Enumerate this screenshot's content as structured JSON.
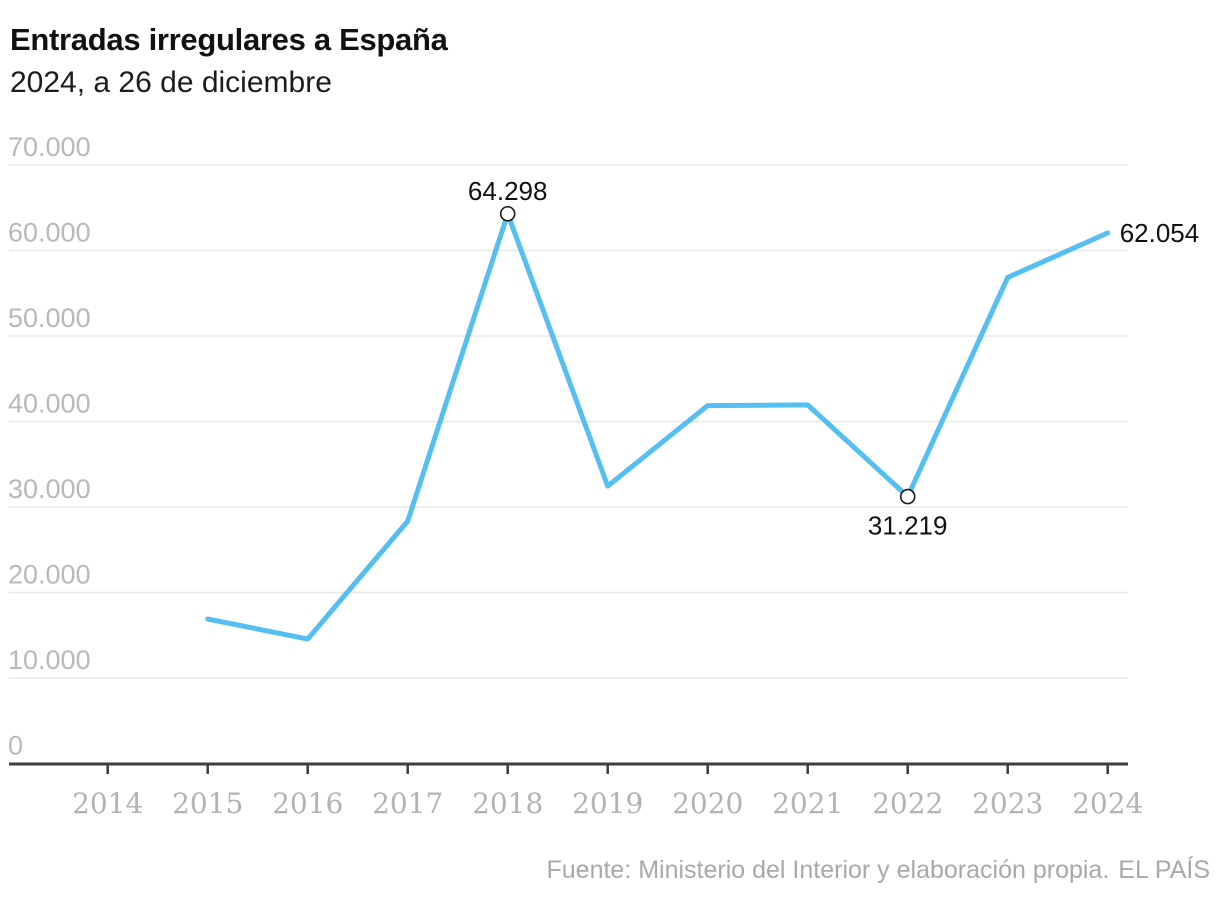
{
  "header": {
    "title": "Entradas irregulares a España",
    "subtitle": "2024, a 26 de diciembre"
  },
  "footer": {
    "source": "Fuente: Ministerio del Interior y elaboración propia.",
    "brand": "EL PAÍS"
  },
  "colors": {
    "line": "#55bef2",
    "axis": "#3d3d3d",
    "gridline": "#e8e8e8",
    "tick_label": "#b5b5b5",
    "annotation_text": "#111111",
    "background": "#ffffff"
  },
  "chart_data": {
    "type": "line",
    "title": "Entradas irregulares a España",
    "subtitle": "2024, a 26 de diciembre",
    "xlabel": "",
    "ylabel": "",
    "ylim": [
      0,
      70000
    ],
    "grid": "horizontal",
    "legend": "none",
    "x_categories": [
      "2014",
      "2015",
      "2016",
      "2017",
      "2018",
      "2019",
      "2020",
      "2021",
      "2022",
      "2023",
      "2024"
    ],
    "y_ticks": [
      {
        "value": 0,
        "label": "0"
      },
      {
        "value": 10000,
        "label": "10.000"
      },
      {
        "value": 20000,
        "label": "20.000"
      },
      {
        "value": 30000,
        "label": "30.000"
      },
      {
        "value": 40000,
        "label": "40.000"
      },
      {
        "value": 50000,
        "label": "50.000"
      },
      {
        "value": 60000,
        "label": "60.000"
      },
      {
        "value": 70000,
        "label": "70.000"
      }
    ],
    "series": [
      {
        "name": "Entradas irregulares a España",
        "color": "#55bef2",
        "x": [
          2015,
          2016,
          2017,
          2018,
          2019,
          2020,
          2021,
          2022,
          2023,
          2024
        ],
        "values": [
          16900,
          14558,
          28349,
          64298,
          32449,
          41861,
          41945,
          31219,
          56852,
          62054
        ]
      }
    ],
    "annotations": [
      {
        "year": 2018,
        "value": 64298,
        "label": "64.298",
        "placement": "top",
        "marker": true
      },
      {
        "year": 2022,
        "value": 31219,
        "label": "31.219",
        "placement": "bottom",
        "marker": true
      },
      {
        "year": 2024,
        "value": 62054,
        "label": "62.054",
        "placement": "right",
        "marker": false
      }
    ]
  }
}
